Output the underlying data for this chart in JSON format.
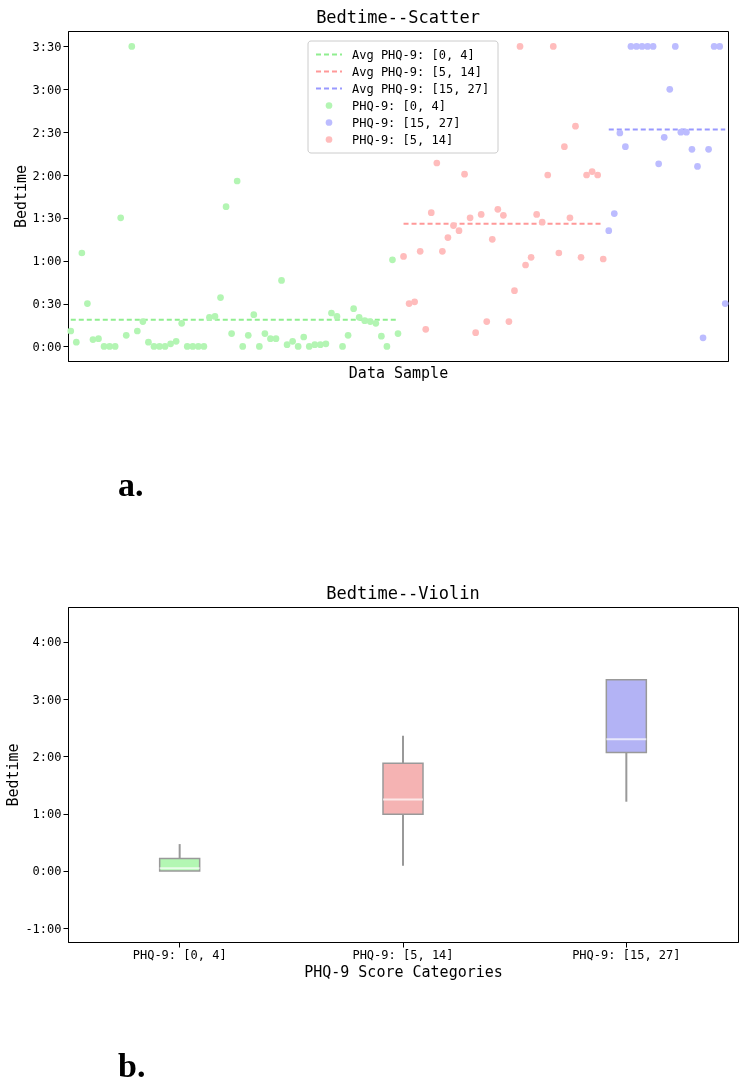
{
  "chart_data": [
    {
      "type": "scatter",
      "title": "Bedtime--Scatter",
      "xlabel": "Data Sample",
      "ylabel": "Bedtime",
      "categories": [
        null,
        null,
        null,
        null,
        null,
        null,
        null,
        null,
        null,
        null,
        null,
        null,
        null,
        null,
        null,
        null,
        null,
        null,
        null,
        null,
        null,
        null,
        null,
        null,
        null,
        null,
        null,
        null,
        null,
        null,
        null,
        null,
        null,
        null,
        null,
        null,
        null,
        null,
        null,
        null,
        null,
        null,
        null,
        null,
        null,
        null,
        null,
        null,
        null,
        null,
        null,
        null,
        null,
        null,
        null,
        null,
        null,
        null,
        null,
        null,
        null,
        null,
        null,
        null,
        null,
        null,
        null,
        null,
        null,
        null,
        null,
        null,
        null,
        null,
        null,
        null,
        null,
        null,
        null,
        null,
        null,
        null,
        null,
        null,
        null,
        null,
        null,
        null,
        null,
        null,
        null,
        null,
        null,
        null,
        null,
        null,
        null,
        null,
        null,
        null,
        null,
        null,
        null,
        null,
        null,
        null,
        null,
        null,
        null,
        null,
        null,
        null,
        null,
        null,
        null,
        null,
        null,
        null,
        null
      ],
      "series": [
        {
          "name": "Avg PHQ-9: [0, 4]",
          "type": "line",
          "line_style": "dashed",
          "color": "#90ee90",
          "values": [
            0.31,
            0.31,
            0.31,
            0.31,
            0.31,
            0.31,
            0.31,
            0.31,
            0.31,
            0.31,
            0.31,
            0.31,
            0.31,
            0.31,
            0.31,
            0.31,
            0.31,
            0.31,
            0.31,
            0.31,
            0.31,
            0.31,
            0.31,
            0.31,
            0.31,
            0.31,
            0.31,
            0.31,
            0.31,
            0.31,
            0.31,
            0.31,
            0.31,
            0.31,
            0.31,
            0.31,
            0.31,
            0.31,
            0.31,
            0.31,
            0.31,
            0.31,
            0.31,
            0.31,
            0.31,
            0.31,
            0.31,
            0.31,
            0.31,
            0.31,
            0.31,
            0.31,
            0.31,
            0.31,
            0.31,
            0.31,
            0.31,
            0.31,
            0.31,
            0.31,
            null,
            null,
            null,
            null,
            null,
            null,
            null,
            null,
            null,
            null,
            null,
            null,
            null,
            null,
            null,
            null,
            null,
            null,
            null,
            null,
            null,
            null,
            null,
            null,
            null,
            null,
            null,
            null,
            null,
            null,
            null,
            null,
            null,
            null,
            null,
            null,
            null,
            null,
            null,
            null,
            null,
            null,
            null,
            null,
            null,
            null,
            null,
            null,
            null,
            null,
            null,
            null,
            null,
            null,
            null,
            null,
            null,
            null,
            null
          ]
        },
        {
          "name": "Avg PHQ-9: [5, 14]",
          "type": "line",
          "line_style": "dashed",
          "color": "#ff9999",
          "values": [
            null,
            null,
            null,
            null,
            null,
            null,
            null,
            null,
            null,
            null,
            null,
            null,
            null,
            null,
            null,
            null,
            null,
            null,
            null,
            null,
            null,
            null,
            null,
            null,
            null,
            null,
            null,
            null,
            null,
            null,
            null,
            null,
            null,
            null,
            null,
            null,
            null,
            null,
            null,
            null,
            null,
            null,
            null,
            null,
            null,
            null,
            null,
            null,
            null,
            null,
            null,
            null,
            null,
            null,
            null,
            null,
            null,
            null,
            null,
            null,
            1.43,
            1.43,
            1.43,
            1.43,
            1.43,
            1.43,
            1.43,
            1.43,
            1.43,
            1.43,
            1.43,
            1.43,
            1.43,
            1.43,
            1.43,
            1.43,
            1.43,
            1.43,
            1.43,
            1.43,
            1.43,
            1.43,
            1.43,
            1.43,
            1.43,
            1.43,
            1.43,
            1.43,
            1.43,
            1.43,
            1.43,
            1.43,
            1.43,
            1.43,
            1.43,
            1.43,
            1.43,
            null,
            null,
            null,
            null,
            null,
            null,
            null,
            null,
            null,
            null,
            null,
            null,
            null,
            null,
            null,
            null,
            null,
            null,
            null,
            null,
            null,
            null
          ]
        },
        {
          "name": "Avg PHQ-9: [15, 27]",
          "type": "line",
          "line_style": "dashed",
          "color": "#9999ff",
          "values": [
            null,
            null,
            null,
            null,
            null,
            null,
            null,
            null,
            null,
            null,
            null,
            null,
            null,
            null,
            null,
            null,
            null,
            null,
            null,
            null,
            null,
            null,
            null,
            null,
            null,
            null,
            null,
            null,
            null,
            null,
            null,
            null,
            null,
            null,
            null,
            null,
            null,
            null,
            null,
            null,
            null,
            null,
            null,
            null,
            null,
            null,
            null,
            null,
            null,
            null,
            null,
            null,
            null,
            null,
            null,
            null,
            null,
            null,
            null,
            null,
            null,
            null,
            null,
            null,
            null,
            null,
            null,
            null,
            null,
            null,
            null,
            null,
            null,
            null,
            null,
            null,
            null,
            null,
            null,
            null,
            null,
            null,
            null,
            null,
            null,
            null,
            null,
            null,
            null,
            null,
            null,
            null,
            null,
            null,
            null,
            null,
            null,
            2.53,
            2.53,
            2.53,
            2.53,
            2.53,
            2.53,
            2.53,
            2.53,
            2.53,
            2.53,
            2.53,
            2.53,
            2.53,
            2.53,
            2.53,
            2.53,
            2.53,
            2.53,
            2.53,
            2.53,
            2.53,
            2.53
          ]
        },
        {
          "name": "PHQ-9: [0, 4]",
          "type": "scatter",
          "marker": "circle",
          "color": "#b3f5b3",
          "values": [
            0.18,
            0.05,
            1.09,
            0.5,
            0.08,
            0.09,
            0,
            0,
            0,
            1.5,
            0.13,
            3.5,
            0.18,
            0.29,
            0.05,
            0,
            0,
            0,
            0.03,
            0.06,
            0.27,
            0,
            0,
            0,
            0,
            0.34,
            0.35,
            0.57,
            1.63,
            0.15,
            1.93,
            0,
            0.13,
            0.37,
            0,
            0.15,
            0.09,
            0.09,
            0.77,
            0.02,
            0.06,
            0,
            0.11,
            0,
            0.02,
            0.02,
            0.03,
            0.39,
            0.35,
            0,
            0.13,
            0.44,
            0.34,
            0.3,
            0.29,
            0.27,
            0.12,
            0,
            1.01,
            0.15,
            null,
            null,
            null,
            null,
            null,
            null,
            null,
            null,
            null,
            null,
            null,
            null,
            null,
            null,
            null,
            null,
            null,
            null,
            null,
            null,
            null,
            null,
            null,
            null,
            null,
            null,
            null,
            null,
            null,
            null,
            null,
            null,
            null,
            null,
            null,
            null,
            null,
            null,
            null,
            null,
            null,
            null,
            null,
            null,
            null,
            null,
            null,
            null,
            null,
            null,
            null,
            null,
            null,
            null,
            null,
            null,
            null,
            null,
            null
          ]
        },
        {
          "name": "PHQ-9: [15, 27]",
          "type": "scatter",
          "marker": "circle",
          "color": "#bcbcff",
          "values": [
            null,
            null,
            null,
            null,
            null,
            null,
            null,
            null,
            null,
            null,
            null,
            null,
            null,
            null,
            null,
            null,
            null,
            null,
            null,
            null,
            null,
            null,
            null,
            null,
            null,
            null,
            null,
            null,
            null,
            null,
            null,
            null,
            null,
            null,
            null,
            null,
            null,
            null,
            null,
            null,
            null,
            null,
            null,
            null,
            null,
            null,
            null,
            null,
            null,
            null,
            null,
            null,
            null,
            null,
            null,
            null,
            null,
            null,
            null,
            null,
            null,
            null,
            null,
            null,
            null,
            null,
            null,
            null,
            null,
            null,
            null,
            null,
            null,
            null,
            null,
            null,
            null,
            null,
            null,
            null,
            null,
            null,
            null,
            null,
            null,
            null,
            null,
            null,
            null,
            null,
            null,
            null,
            null,
            null,
            null,
            null,
            null,
            1.35,
            1.55,
            2.49,
            2.33,
            3.5,
            3.5,
            3.5,
            3.5,
            3.5,
            2.13,
            2.44,
            3.0,
            3.5,
            2.5,
            2.5,
            2.3,
            2.1,
            0.1,
            2.3,
            3.5,
            3.5,
            0.5
          ]
        },
        {
          "name": "PHQ-9: [5, 14]",
          "type": "scatter",
          "marker": "circle",
          "color": "#ffbcbc",
          "values": [
            null,
            null,
            null,
            null,
            null,
            null,
            null,
            null,
            null,
            null,
            null,
            null,
            null,
            null,
            null,
            null,
            null,
            null,
            null,
            null,
            null,
            null,
            null,
            null,
            null,
            null,
            null,
            null,
            null,
            null,
            null,
            null,
            null,
            null,
            null,
            null,
            null,
            null,
            null,
            null,
            null,
            null,
            null,
            null,
            null,
            null,
            null,
            null,
            null,
            null,
            null,
            null,
            null,
            null,
            null,
            null,
            null,
            null,
            null,
            null,
            1.05,
            0.5,
            0.52,
            1.11,
            0.2,
            1.56,
            2.14,
            1.11,
            1.27,
            1.41,
            1.35,
            2.01,
            1.5,
            0.16,
            1.54,
            0.29,
            1.25,
            1.6,
            1.53,
            0.29,
            0.65,
            3.5,
            0.95,
            1.04,
            1.54,
            1.45,
            2.0,
            3.5,
            1.09,
            2.33,
            1.5,
            2.57,
            1.04,
            2.0,
            2.04,
            2.0,
            1.02,
            null,
            null,
            null,
            null,
            null,
            null,
            null,
            null,
            null,
            null,
            null,
            null,
            null,
            null,
            null,
            null,
            null,
            null,
            null,
            null,
            null,
            null
          ]
        }
      ],
      "ylim": [
        -0.17,
        3.68
      ],
      "yticks": [
        {
          "value": 0,
          "label": "0:00"
        },
        {
          "value": 0.5,
          "label": "0:30"
        },
        {
          "value": 1,
          "label": "1:00"
        },
        {
          "value": 1.5,
          "label": "1:30"
        },
        {
          "value": 2,
          "label": "2:00"
        },
        {
          "value": 2.5,
          "label": "2:30"
        },
        {
          "value": 3,
          "label": "3:00"
        },
        {
          "value": 3.5,
          "label": "3:30"
        }
      ],
      "tick_labels": "y",
      "grid": false,
      "legend": "top",
      "annotations": [
        "a."
      ]
    },
    {
      "type": "box",
      "title": "Bedtime--Violin",
      "xlabel": "PHQ-9 Score Categories",
      "ylabel": "Bedtime",
      "categories": [
        "PHQ-9: [0, 4]",
        "PHQ-9: [5, 14]",
        "PHQ-9: [15, 27]"
      ],
      "colors": [
        "#b3f7b3",
        "#f5b3b3",
        "#b3b3f5"
      ],
      "boxes": [
        {
          "low": 0,
          "q1": 0,
          "median": 0.05,
          "q3": 0.22,
          "high": 0.47
        },
        {
          "low": 0.09,
          "q1": 0.99,
          "median": 1.25,
          "q3": 1.88,
          "high": 2.36
        },
        {
          "low": 1.21,
          "q1": 2.07,
          "median": 2.3,
          "q3": 3.34,
          "high": 3.34
        }
      ],
      "ylim": [
        -1.24,
        4.61
      ],
      "yticks": [
        {
          "value": -1,
          "label": "-1:00"
        },
        {
          "value": 0,
          "label": "0:00"
        },
        {
          "value": 1,
          "label": "1:00"
        },
        {
          "value": 2,
          "label": "2:00"
        },
        {
          "value": 3,
          "label": "3:00"
        },
        {
          "value": 4,
          "label": "4:00"
        }
      ],
      "grid": false,
      "legend": false,
      "annotations": [
        "b."
      ]
    }
  ]
}
